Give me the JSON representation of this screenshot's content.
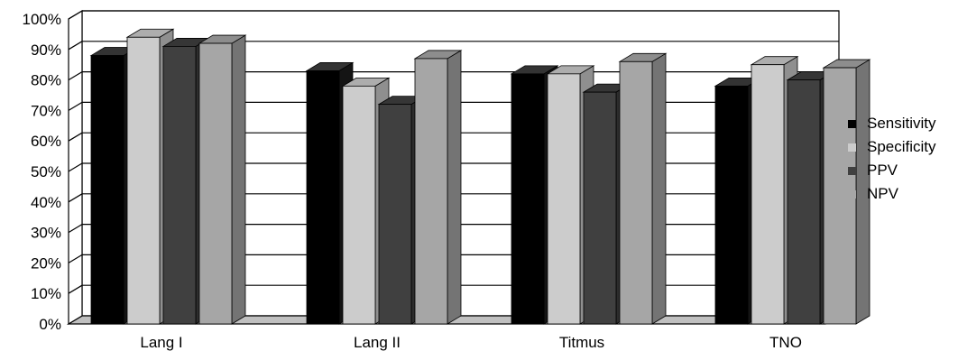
{
  "chart_data": {
    "type": "bar",
    "categories": [
      "Lang I",
      "Lang II",
      "Titmus",
      "TNO"
    ],
    "series": [
      {
        "name": "Sensitivity",
        "color": "#000000",
        "values": [
          88,
          83,
          82,
          78
        ]
      },
      {
        "name": "Specificity",
        "color": "#cccccc",
        "values": [
          94,
          78,
          82,
          85
        ]
      },
      {
        "name": "PPV",
        "color": "#404040",
        "values": [
          91,
          72,
          76,
          80
        ]
      },
      {
        "name": "NPV",
        "color": "#a6a6a6",
        "values": [
          92,
          87,
          86,
          84
        ]
      }
    ],
    "ylim": [
      0,
      100
    ],
    "yticks": [
      "0%",
      "10%",
      "20%",
      "30%",
      "40%",
      "50%",
      "60%",
      "70%",
      "80%",
      "90%",
      "100%"
    ],
    "grid": true,
    "legend_position": "right",
    "style": "3d-clustered-bar"
  }
}
